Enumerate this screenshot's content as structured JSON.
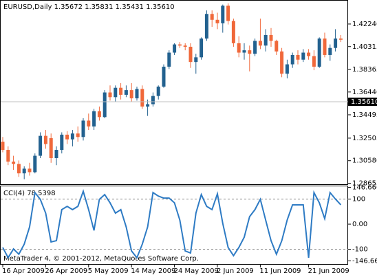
{
  "chart_data": [
    {
      "type": "candlestick",
      "title": "EURUSD,Daily  1.35672 1.35831 1.35431 1.35610",
      "watermark": "MetaTrader 4, © 2001-2012, MetaQuotes Software Corp.",
      "categories": [
        "16 Apr 2009",
        null,
        null,
        null,
        null,
        null,
        null,
        null,
        "26 Apr 2009",
        null,
        null,
        null,
        null,
        null,
        null,
        null,
        "5 May 2009",
        null,
        null,
        null,
        null,
        null,
        null,
        null,
        "14 May 2009",
        null,
        null,
        null,
        null,
        null,
        null,
        null,
        "24 May 2009",
        null,
        null,
        null,
        null,
        null,
        null,
        null,
        "2 Jun 2009",
        null,
        null,
        null,
        null,
        null,
        null,
        null,
        "11 Jun 2009",
        null,
        null,
        null,
        null,
        null,
        null,
        null,
        null,
        "21 Jun 2009",
        null,
        null,
        null,
        null,
        null,
        null
      ],
      "open": [
        1.322,
        1.315,
        1.305,
        1.303,
        1.295,
        1.299,
        1.296,
        1.31,
        1.327,
        1.325,
        1.308,
        1.315,
        1.328,
        1.324,
        1.329,
        1.326,
        1.34,
        1.335,
        1.348,
        1.343,
        1.364,
        1.36,
        1.368,
        1.362,
        1.366,
        1.359,
        1.367,
        1.352,
        1.354,
        1.361,
        1.369,
        1.386,
        1.398,
        1.405,
        1.404,
        1.403,
        1.39,
        1.394,
        1.41,
        1.431,
        1.426,
        1.423,
        1.438,
        1.425,
        1.406,
        1.398,
        1.4,
        1.397,
        1.408,
        1.404,
        1.413,
        1.408,
        1.399,
        1.38,
        1.388,
        1.396,
        1.392,
        1.398,
        1.395,
        1.386,
        1.41,
        1.396,
        1.402,
        1.41
      ],
      "high": [
        1.326,
        1.318,
        1.31,
        1.306,
        1.301,
        1.304,
        1.312,
        1.33,
        1.332,
        1.329,
        1.318,
        1.33,
        1.331,
        1.332,
        1.335,
        1.342,
        1.346,
        1.35,
        1.352,
        1.366,
        1.37,
        1.37,
        1.372,
        1.37,
        1.372,
        1.369,
        1.37,
        1.358,
        1.364,
        1.37,
        1.388,
        1.4,
        1.406,
        1.407,
        1.406,
        1.406,
        1.397,
        1.411,
        1.434,
        1.434,
        1.432,
        1.439,
        1.44,
        1.427,
        1.412,
        1.406,
        1.404,
        1.41,
        1.427,
        1.418,
        1.419,
        1.409,
        1.402,
        1.392,
        1.398,
        1.4,
        1.401,
        1.401,
        1.4,
        1.411,
        1.415,
        1.405,
        1.418,
        1.413
      ],
      "low": [
        1.313,
        1.302,
        1.298,
        1.292,
        1.29,
        1.293,
        1.295,
        1.308,
        1.316,
        1.304,
        1.302,
        1.312,
        1.32,
        1.318,
        1.322,
        1.323,
        1.332,
        1.332,
        1.34,
        1.342,
        1.357,
        1.356,
        1.358,
        1.36,
        1.356,
        1.357,
        1.35,
        1.344,
        1.352,
        1.358,
        1.368,
        1.384,
        1.396,
        1.402,
        1.4,
        1.385,
        1.38,
        1.392,
        1.408,
        1.42,
        1.418,
        1.415,
        1.422,
        1.403,
        1.394,
        1.392,
        1.382,
        1.395,
        1.401,
        1.399,
        1.403,
        1.396,
        1.377,
        1.376,
        1.385,
        1.388,
        1.39,
        1.392,
        1.383,
        1.385,
        1.394,
        1.391,
        1.399,
        1.407
      ],
      "close": [
        1.315,
        1.305,
        1.303,
        1.295,
        1.299,
        1.296,
        1.31,
        1.327,
        1.32,
        1.308,
        1.315,
        1.328,
        1.324,
        1.329,
        1.326,
        1.34,
        1.335,
        1.348,
        1.343,
        1.364,
        1.36,
        1.368,
        1.362,
        1.366,
        1.359,
        1.367,
        1.352,
        1.354,
        1.361,
        1.369,
        1.386,
        1.398,
        1.405,
        1.404,
        1.403,
        1.39,
        1.394,
        1.41,
        1.431,
        1.426,
        1.423,
        1.438,
        1.425,
        1.406,
        1.398,
        1.4,
        1.397,
        1.408,
        1.404,
        1.413,
        1.408,
        1.399,
        1.38,
        1.388,
        1.396,
        1.392,
        1.398,
        1.395,
        1.386,
        1.41,
        1.396,
        1.402,
        1.41,
        1.409
      ],
      "up_color": "#22618f",
      "down_color": "#f0683a",
      "ylim": [
        1.2857,
        1.4423
      ],
      "yticks": [
        {
          "value": 1.4224,
          "label": "1.42240"
        },
        {
          "value": 1.40315,
          "label": "1.40315"
        },
        {
          "value": 1.38365,
          "label": "1.38365"
        },
        {
          "value": 1.3644,
          "label": "1.36440"
        },
        {
          "value": 1.34495,
          "label": "1.34495"
        },
        {
          "value": 1.32505,
          "label": "1.32505"
        },
        {
          "value": 1.3058,
          "label": "1.30580"
        },
        {
          "value": 1.28655,
          "label": "1.28655"
        }
      ],
      "last_price": {
        "value": 1.3561,
        "label": "1.35610"
      }
    },
    {
      "type": "line",
      "title": "CCI(4) 78.5398",
      "color": "#2e7bc4",
      "values": [
        -93,
        -134,
        -99,
        -120,
        -80,
        -11,
        126,
        99,
        44,
        -71,
        -66,
        58,
        71,
        58,
        71,
        131,
        58,
        -25,
        99,
        118,
        85,
        44,
        58,
        -11,
        -107,
        -134,
        -80,
        -11,
        126,
        112,
        104,
        104,
        85,
        16,
        -107,
        -115,
        44,
        118,
        71,
        58,
        121,
        3,
        -93,
        -126,
        -93,
        -52,
        30,
        58,
        99,
        16,
        -66,
        -120,
        -66,
        16,
        77,
        77,
        77,
        -134,
        126,
        85,
        22,
        126,
        100,
        77
      ],
      "ylim": [
        -159,
        151
      ],
      "yticks": [
        146.6667,
        100,
        {
          "value": 0,
          "label": "0.00"
        },
        -100,
        -146.6667
      ],
      "levels": [
        100,
        -100
      ]
    }
  ]
}
